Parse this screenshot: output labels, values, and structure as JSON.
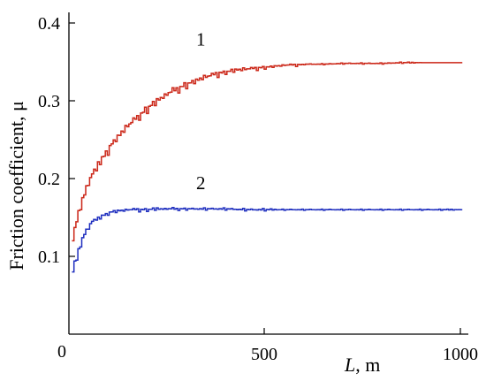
{
  "chart_data": {
    "type": "line",
    "title": "",
    "xlabel": {
      "var": "L",
      "unit": ", m"
    },
    "ylabel": "Friction coefficient, μ",
    "xlim": [
      0,
      1050
    ],
    "ylim": [
      0,
      0.4
    ],
    "x_ticks": [
      500,
      1000
    ],
    "x_tick_labels": [
      "500",
      "1000"
    ],
    "y_ticks": [
      0.1,
      0.2,
      0.3,
      0.4
    ],
    "y_tick_labels": [
      "0.1",
      "0.2",
      "0.3",
      "0.4"
    ],
    "origin_label": "0",
    "grid": false,
    "legend": "none",
    "series": [
      {
        "label": "1",
        "color": "#cc2a1a",
        "band_color": "#e7a6c8",
        "x": [
          10,
          20,
          30,
          40,
          50,
          60,
          70,
          80,
          90,
          100,
          120,
          140,
          160,
          180,
          200,
          220,
          240,
          260,
          280,
          300,
          320,
          340,
          360,
          380,
          400,
          420,
          440,
          460,
          480,
          500,
          520,
          540,
          560,
          580,
          600,
          650,
          700,
          750,
          800,
          850,
          900,
          950,
          1000
        ],
        "y": [
          0.12,
          0.148,
          0.168,
          0.182,
          0.196,
          0.206,
          0.216,
          0.224,
          0.231,
          0.238,
          0.251,
          0.262,
          0.272,
          0.281,
          0.29,
          0.298,
          0.305,
          0.311,
          0.316,
          0.321,
          0.325,
          0.329,
          0.332,
          0.335,
          0.337,
          0.339,
          0.34,
          0.341,
          0.342,
          0.343,
          0.344,
          0.345,
          0.346,
          0.346,
          0.347,
          0.347,
          0.348,
          0.348,
          0.348,
          0.349,
          0.349,
          0.349,
          0.349
        ],
        "noise": [
          0.0,
          0.006,
          -0.008,
          0.01,
          -0.006,
          0.008,
          -0.01,
          0.006,
          -0.008,
          0.01,
          -0.006,
          0.008,
          -0.007,
          0.006,
          -0.008,
          0.007,
          -0.006,
          0.008,
          -0.006,
          0.007,
          -0.005,
          0.006,
          -0.005,
          0.005,
          -0.004,
          0.004,
          -0.004,
          0.003,
          -0.003,
          0.003,
          -0.002,
          0.002,
          -0.002,
          0.002,
          -0.001,
          0.001,
          -0.001,
          0.001,
          -0.001,
          0.001,
          0.0,
          0.0,
          0.0
        ]
      },
      {
        "label": "2",
        "color": "#1f2fbf",
        "x": [
          10,
          20,
          30,
          40,
          50,
          60,
          70,
          80,
          90,
          100,
          120,
          140,
          160,
          180,
          200,
          220,
          240,
          260,
          280,
          300,
          350,
          400,
          450,
          500,
          550,
          600,
          650,
          700,
          750,
          800,
          850,
          900,
          950,
          1000
        ],
        "y": [
          0.08,
          0.1,
          0.118,
          0.13,
          0.139,
          0.145,
          0.149,
          0.152,
          0.154,
          0.156,
          0.158,
          0.159,
          0.16,
          0.16,
          0.16,
          0.161,
          0.161,
          0.161,
          0.161,
          0.161,
          0.161,
          0.161,
          0.16,
          0.16,
          0.16,
          0.16,
          0.16,
          0.16,
          0.16,
          0.16,
          0.16,
          0.16,
          0.16,
          0.16
        ],
        "noise": [
          0.0,
          0.008,
          -0.006,
          0.006,
          -0.005,
          0.005,
          -0.004,
          0.004,
          -0.004,
          0.004,
          -0.003,
          0.003,
          -0.003,
          0.003,
          -0.003,
          0.003,
          -0.002,
          0.003,
          -0.002,
          0.002,
          -0.002,
          0.002,
          -0.002,
          0.002,
          -0.001,
          0.001,
          -0.001,
          0.001,
          -0.001,
          0.001,
          -0.001,
          0.001,
          -0.001,
          0.0
        ]
      }
    ],
    "annotations": [
      {
        "text": "1",
        "x": 370,
        "y": 0.37
      },
      {
        "text": "2",
        "x": 370,
        "y": 0.185
      }
    ]
  }
}
